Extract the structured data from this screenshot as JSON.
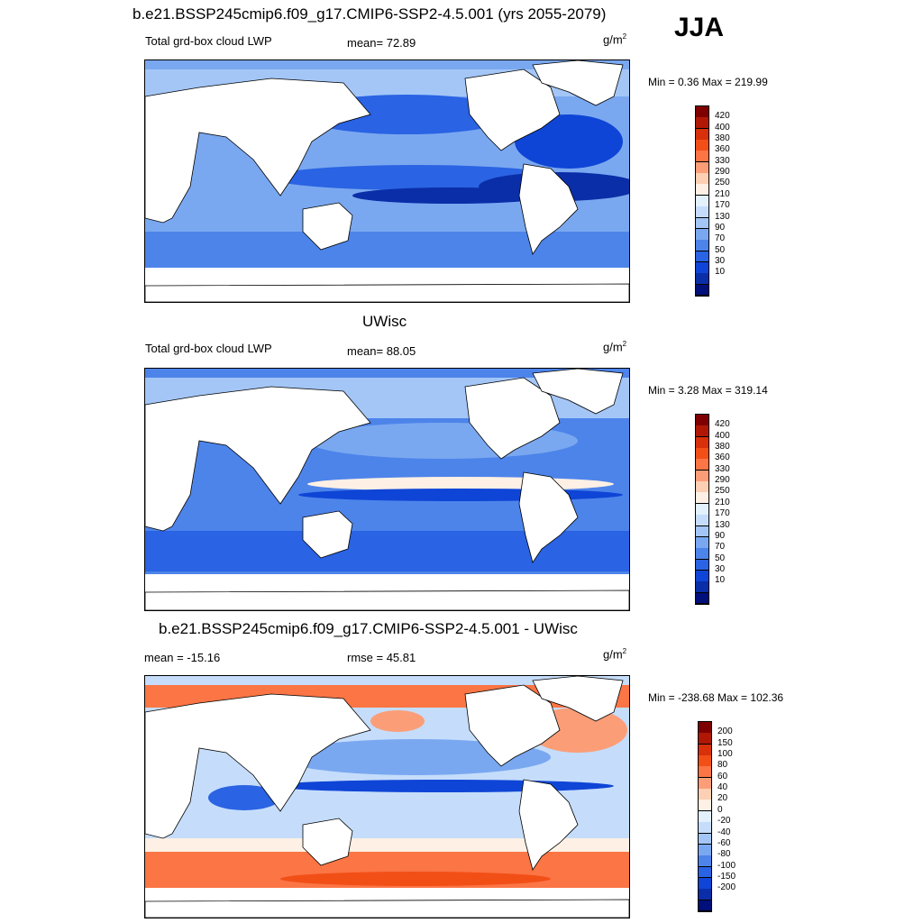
{
  "header": {
    "title": "b.e21.BSSP245cmip6.f09_g17.CMIP6-SSP2-4.5.001 (yrs 2055-2079)",
    "season": "JJA"
  },
  "panels": [
    {
      "left_label": "Total grd-box cloud LWP",
      "center_label": "mean=  72.89",
      "units_base": "g/m",
      "units_exp": "2",
      "minmax": "Min =   0.36 Max = 219.99",
      "levels": [
        "420",
        "400",
        "380",
        "360",
        "330",
        "290",
        "250",
        "210",
        "170",
        "130",
        "90",
        "70",
        "50",
        "30",
        "10"
      ],
      "colors": [
        "#7f0000",
        "#b01805",
        "#d7300b",
        "#f24f17",
        "#fb7545",
        "#fb9e78",
        "#fdcfb3",
        "#fef0e4",
        "#e3f1fd",
        "#c5ddfb",
        "#a3c6f7",
        "#7aa8f0",
        "#4d84ea",
        "#2a63e3",
        "#0f45d6",
        "#0a2ea8",
        "#000f7a"
      ]
    },
    {
      "title": "UWisc",
      "left_label": "Total grd-box cloud LWP",
      "center_label": "mean=  88.05",
      "units_base": "g/m",
      "units_exp": "2",
      "minmax": "Min =   3.28 Max = 319.14",
      "levels": [
        "420",
        "400",
        "380",
        "360",
        "330",
        "290",
        "250",
        "210",
        "170",
        "130",
        "90",
        "70",
        "50",
        "30",
        "10"
      ],
      "colors": [
        "#7f0000",
        "#b01805",
        "#d7300b",
        "#f24f17",
        "#fb7545",
        "#fb9e78",
        "#fdcfb3",
        "#fef0e4",
        "#e3f1fd",
        "#c5ddfb",
        "#a3c6f7",
        "#7aa8f0",
        "#4d84ea",
        "#2a63e3",
        "#0f45d6",
        "#0a2ea8",
        "#000f7a"
      ]
    },
    {
      "title": "b.e21.BSSP245cmip6.f09_g17.CMIP6-SSP2-4.5.001 - UWisc",
      "left_label": "mean = -15.16",
      "center_label": "rmse =  45.81",
      "units_base": "g/m",
      "units_exp": "2",
      "minmax": "Min = -238.68 Max = 102.36",
      "levels": [
        "200",
        "150",
        "100",
        "80",
        "60",
        "40",
        "20",
        "0",
        "-20",
        "-40",
        "-60",
        "-80",
        "-100",
        "-150",
        "-200"
      ],
      "colors": [
        "#7f0000",
        "#b01805",
        "#d7300b",
        "#f24f17",
        "#fb7545",
        "#fb9e78",
        "#fdcfb3",
        "#fef0e4",
        "#e3f1fd",
        "#c5ddfb",
        "#a3c6f7",
        "#7aa8f0",
        "#4d84ea",
        "#2a63e3",
        "#0f45d6",
        "#0a2ea8",
        "#000f7a"
      ]
    }
  ]
}
